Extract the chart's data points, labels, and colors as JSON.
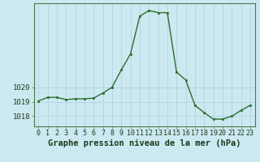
{
  "x": [
    0,
    1,
    2,
    3,
    4,
    5,
    6,
    7,
    8,
    9,
    10,
    11,
    12,
    13,
    14,
    15,
    16,
    17,
    18,
    19,
    20,
    21,
    22,
    23
  ],
  "y": [
    1019.05,
    1019.3,
    1019.3,
    1019.15,
    1019.2,
    1019.2,
    1019.25,
    1019.6,
    1020.0,
    1021.2,
    1022.3,
    1024.9,
    1025.3,
    1025.15,
    1025.15,
    1021.05,
    1020.5,
    1018.75,
    1018.25,
    1017.8,
    1017.8,
    1018.0,
    1018.4,
    1018.75
  ],
  "line_color": "#2d6e2d",
  "marker": "s",
  "marker_size": 2.0,
  "background_color": "#cce8f0",
  "grid_color_major": "#b0d0dc",
  "grid_color_minor": "#b0d0dc",
  "xlabel": "Graphe pression niveau de la mer (hPa)",
  "xlabel_fontsize": 7.5,
  "ylabel_ticks": [
    1018,
    1019,
    1020
  ],
  "ylim": [
    1017.3,
    1025.8
  ],
  "xlim": [
    -0.5,
    23.5
  ],
  "tick_fontsize": 6.5,
  "line_width": 1.0,
  "spine_color": "#4a7a4a"
}
